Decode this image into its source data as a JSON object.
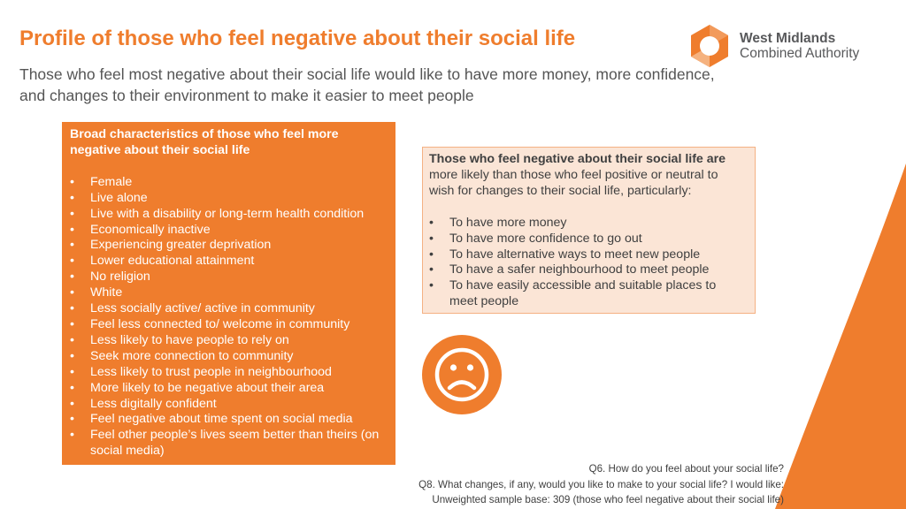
{
  "header": {
    "title": "Profile of those who feel negative about their social life",
    "subtitle": "Those who feel most negative about their social life would like to have more money, more confidence, and changes to their environment to make it easier to meet people"
  },
  "logo": {
    "line1": "West Midlands",
    "line2": "Combined Authority"
  },
  "characteristics_box": {
    "heading": "Broad characteristics of those who feel more negative about their social life",
    "items": [
      "Female",
      "Live alone",
      "Live with a disability or long-term health condition",
      "Economically inactive",
      "Experiencing greater deprivation",
      "Lower educational attainment",
      "No religion",
      "White",
      "Less socially active/ active in community",
      "Feel less connected to/ welcome in community",
      "Less likely to have people to rely on",
      "Seek more connection to community",
      "Less likely to trust people in neighbourhood",
      "More likely to be negative about their area",
      "Less digitally confident",
      "Feel negative about time spent on social media",
      "Feel other people’s lives seem better than theirs (on social media)"
    ]
  },
  "changes_box": {
    "intro_bold": "Those who feel negative about their social life are",
    "intro_rest": " more likely than those who feel positive or neutral to wish for changes to their social life, particularly:",
    "items": [
      "To have more money",
      "To have more confidence to go out",
      "To have alternative ways to meet new people",
      "To have a safer neighbourhood to meet people",
      "To have easily accessible and suitable places to meet people"
    ]
  },
  "footnotes": {
    "q6": "Q6. How do you feel about your social life?",
    "q8": "Q8. What changes, if any, would you like to make to your social life? I would like:",
    "base": "Unweighted sample base: 309 (those who feel negative about their social life)"
  },
  "icons": {
    "sad_face": "sad-face-icon",
    "logo_mark": "hexagon-ring-logo-icon"
  },
  "colors": {
    "accent_orange": "#EF7D2D",
    "light_peach": "#FBE5D6",
    "peach_border": "#F4B183",
    "body_text": "#404040",
    "logo_grey": "#58595B"
  }
}
